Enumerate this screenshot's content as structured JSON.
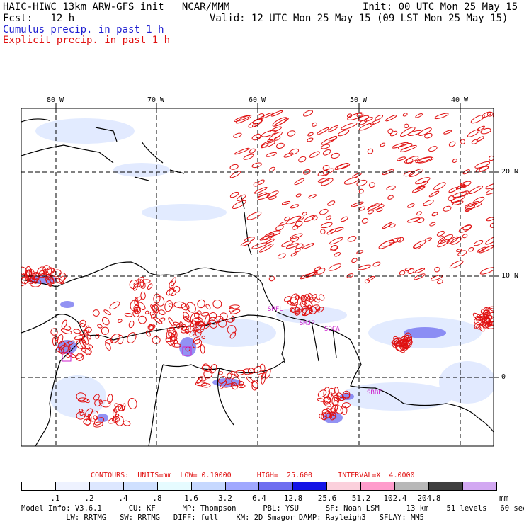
{
  "header": {
    "title": "HAIC-HIWC 13km ARW-GFS init   NCAR/MMM",
    "init": "Init: 00 UTC Mon 25 May 15",
    "fcst": "Fcst:   12 h",
    "valid": "Valid: 12 UTC Mon 25 May 15 (09 LST Mon 25 May 15)",
    "legend_cumulus": "Cumulus precip. in past 1 h",
    "legend_explicit": "Explicit precip. in past 1 h"
  },
  "map": {
    "lon_labels": [
      "80 W",
      "70 W",
      "60 W",
      "50 W",
      "40 W"
    ],
    "lat_labels": [
      "20 N",
      "10 N",
      "0"
    ],
    "stations": [
      "SPFL",
      "SMJP",
      "SOCA",
      "SBBE"
    ]
  },
  "colors": {
    "cumulus": "#1c1cd0",
    "explicit": "#e01010",
    "station": "#cc22cc"
  },
  "contours": {
    "text": "CONTOURS:  UNITS=mm  LOW= 0.10000      HIGH=  25.600      INTERVAL=X  4.0000"
  },
  "colorbar": {
    "colors": [
      "#ffffff",
      "#eef2ff",
      "#dde7ff",
      "#cfe0ff",
      "#e6fbff",
      "#c6d8ff",
      "#a0a8ff",
      "#6e6ef0",
      "#1414e6",
      "#fbd0dc",
      "#ff9ccc",
      "#b8b8b8",
      "#404040",
      "#d2a8f2"
    ],
    "ticks": [
      ".1",
      ".2",
      ".4",
      ".8",
      "1.6",
      "3.2",
      "6.4",
      "12.8",
      "25.6",
      "51.2",
      "102.4",
      "204.8"
    ],
    "unit": "mm"
  },
  "footer": {
    "line1": "Model Info: V3.6.1      CU: KF      MP: Thompson      PBL: YSU      SF: Noah LSM      13 km    51 levels   60 sec",
    "line2": "          LW: RRTMG   SW: RRTMG   DIFF: full    KM: 2D Smagor DAMP: Rayleigh3   SFLAY: MM5"
  }
}
